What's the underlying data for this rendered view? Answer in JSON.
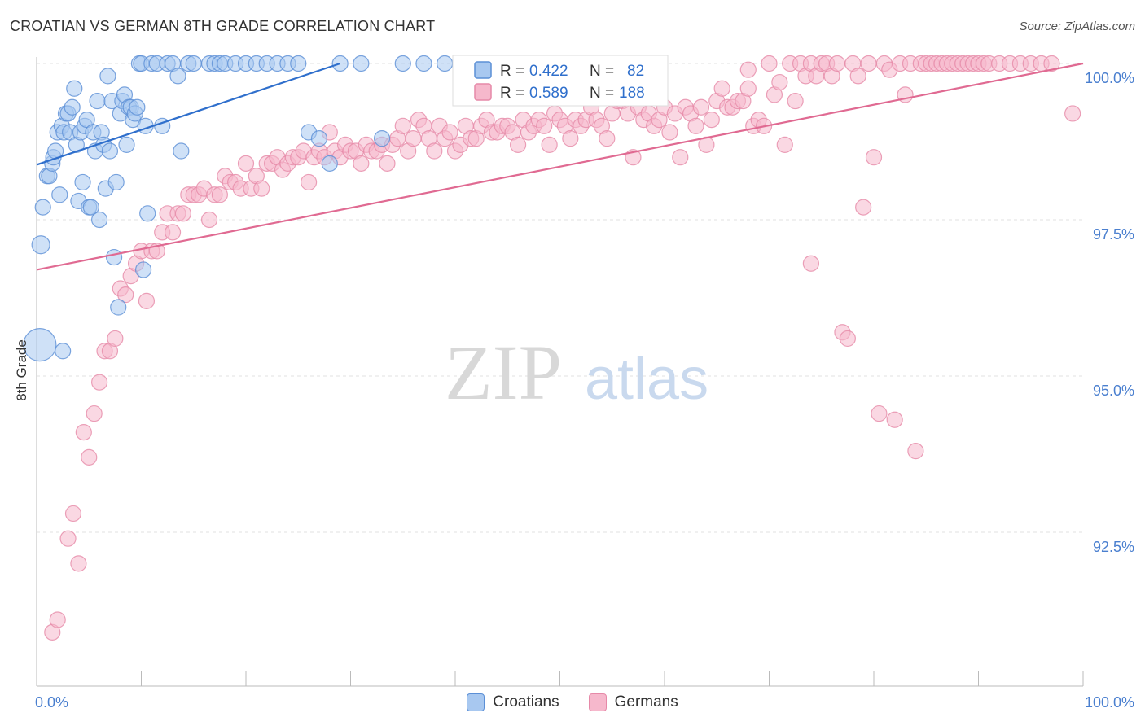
{
  "title": "CROATIAN VS GERMAN 8TH GRADE CORRELATION CHART",
  "source": "Source: ZipAtlas.com",
  "watermark": {
    "zip": "ZIP",
    "atlas": "atlas"
  },
  "chart_data": {
    "type": "scatter",
    "xlabel": "",
    "ylabel": "8th Grade",
    "xlim": [
      0,
      100
    ],
    "ylim": [
      90.2,
      100.6
    ],
    "x_tick_labels": [
      {
        "value": 0,
        "label": "0.0%"
      },
      {
        "value": 100,
        "label": "100.0%"
      }
    ],
    "y_ticks": [
      {
        "value": 92.5,
        "label": "92.5%"
      },
      {
        "value": 95.0,
        "label": "95.0%"
      },
      {
        "value": 97.5,
        "label": "97.5%"
      },
      {
        "value": 100.0,
        "label": "100.0%"
      }
    ],
    "legend_position": "top-center",
    "colors": {
      "croatians_fill": "#a8c8f0",
      "croatians_stroke": "#5b8fd6",
      "croatians_line": "#2f6fcc",
      "germans_fill": "#f6b8cc",
      "germans_stroke": "#e689a8",
      "germans_line": "#e06a92",
      "value_text": "#2f6fcc"
    },
    "series": [
      {
        "name": "Croatians",
        "r_label": "R =",
        "r_value": "0.422",
        "n_label": "N =",
        "n_value": "82",
        "trend": {
          "x0": 0,
          "y0": 98.38,
          "x1": 29,
          "y1": 100.0
        },
        "points": [
          [
            0.3,
            95.5
          ],
          [
            0.4,
            97.1
          ],
          [
            0.6,
            97.7
          ],
          [
            1.0,
            98.2
          ],
          [
            1.2,
            98.2
          ],
          [
            1.5,
            98.4
          ],
          [
            1.6,
            98.5
          ],
          [
            1.8,
            98.6
          ],
          [
            2.0,
            98.9
          ],
          [
            2.2,
            97.9
          ],
          [
            2.4,
            99.0
          ],
          [
            2.6,
            98.9
          ],
          [
            2.8,
            99.2
          ],
          [
            3.0,
            99.2
          ],
          [
            3.2,
            98.9
          ],
          [
            3.4,
            99.3
          ],
          [
            3.6,
            99.6
          ],
          [
            3.8,
            98.7
          ],
          [
            4.0,
            97.8
          ],
          [
            4.2,
            98.9
          ],
          [
            4.4,
            98.1
          ],
          [
            4.6,
            99.0
          ],
          [
            4.8,
            99.1
          ],
          [
            5.0,
            97.7
          ],
          [
            5.2,
            97.7
          ],
          [
            5.4,
            98.9
          ],
          [
            5.6,
            98.6
          ],
          [
            5.8,
            99.4
          ],
          [
            6.0,
            97.5
          ],
          [
            6.2,
            98.9
          ],
          [
            6.4,
            98.7
          ],
          [
            6.6,
            98.0
          ],
          [
            6.8,
            99.8
          ],
          [
            7.0,
            98.6
          ],
          [
            7.2,
            99.4
          ],
          [
            7.4,
            96.9
          ],
          [
            7.6,
            98.1
          ],
          [
            7.8,
            96.1
          ],
          [
            8.0,
            99.2
          ],
          [
            8.2,
            99.4
          ],
          [
            8.4,
            99.5
          ],
          [
            8.6,
            98.7
          ],
          [
            8.8,
            99.3
          ],
          [
            9.0,
            99.3
          ],
          [
            9.2,
            99.1
          ],
          [
            9.4,
            99.2
          ],
          [
            9.6,
            99.3
          ],
          [
            9.8,
            100.0
          ],
          [
            10.0,
            100.0
          ],
          [
            10.2,
            96.7
          ],
          [
            10.4,
            99.0
          ],
          [
            10.6,
            97.6
          ],
          [
            11.0,
            100.0
          ],
          [
            11.5,
            100.0
          ],
          [
            12.0,
            99.0
          ],
          [
            12.5,
            100.0
          ],
          [
            13.0,
            100.0
          ],
          [
            13.5,
            99.8
          ],
          [
            13.8,
            98.6
          ],
          [
            14.5,
            100.0
          ],
          [
            15.0,
            100.0
          ],
          [
            2.5,
            95.4
          ],
          [
            16.5,
            100.0
          ],
          [
            17.0,
            100.0
          ],
          [
            17.5,
            100.0
          ],
          [
            18.0,
            100.0
          ],
          [
            19.0,
            100.0
          ],
          [
            20.0,
            100.0
          ],
          [
            21.0,
            100.0
          ],
          [
            22.0,
            100.0
          ],
          [
            23.0,
            100.0
          ],
          [
            24.0,
            100.0
          ],
          [
            25.0,
            100.0
          ],
          [
            26.0,
            98.9
          ],
          [
            27.0,
            98.8
          ],
          [
            28.0,
            98.4
          ],
          [
            29.0,
            100.0
          ],
          [
            31.0,
            100.0
          ],
          [
            33.0,
            98.8
          ],
          [
            35.0,
            100.0
          ],
          [
            37.0,
            100.0
          ],
          [
            39.0,
            100.0
          ]
        ]
      },
      {
        "name": "Germans",
        "r_label": "R =",
        "r_value": "0.589",
        "n_label": "N =",
        "n_value": "188",
        "trend": {
          "x0": 0,
          "y0": 96.7,
          "x1": 100,
          "y1": 100.0
        },
        "points": [
          [
            1.5,
            90.9
          ],
          [
            2.0,
            91.1
          ],
          [
            3.0,
            92.4
          ],
          [
            3.5,
            92.8
          ],
          [
            4.0,
            92.0
          ],
          [
            4.5,
            94.1
          ],
          [
            5.0,
            93.7
          ],
          [
            5.5,
            94.4
          ],
          [
            6.0,
            94.9
          ],
          [
            6.5,
            95.4
          ],
          [
            7.0,
            95.4
          ],
          [
            7.5,
            95.6
          ],
          [
            8.0,
            96.4
          ],
          [
            8.5,
            96.3
          ],
          [
            9.0,
            96.6
          ],
          [
            9.5,
            96.8
          ],
          [
            10.0,
            97.0
          ],
          [
            10.5,
            96.2
          ],
          [
            11.0,
            97.0
          ],
          [
            11.5,
            97.0
          ],
          [
            12.0,
            97.3
          ],
          [
            12.5,
            97.6
          ],
          [
            13.0,
            97.3
          ],
          [
            13.5,
            97.6
          ],
          [
            14.0,
            97.6
          ],
          [
            14.5,
            97.9
          ],
          [
            15.0,
            97.9
          ],
          [
            15.5,
            97.9
          ],
          [
            16.0,
            98.0
          ],
          [
            16.5,
            97.5
          ],
          [
            17.0,
            97.9
          ],
          [
            17.5,
            97.9
          ],
          [
            18.0,
            98.2
          ],
          [
            18.5,
            98.1
          ],
          [
            19.0,
            98.1
          ],
          [
            19.5,
            98.0
          ],
          [
            20.0,
            98.4
          ],
          [
            20.5,
            98.0
          ],
          [
            21.0,
            98.2
          ],
          [
            21.5,
            98.0
          ],
          [
            22.0,
            98.4
          ],
          [
            22.5,
            98.4
          ],
          [
            23.0,
            98.5
          ],
          [
            23.5,
            98.3
          ],
          [
            24.0,
            98.4
          ],
          [
            24.5,
            98.5
          ],
          [
            25.0,
            98.5
          ],
          [
            25.5,
            98.6
          ],
          [
            26.0,
            98.1
          ],
          [
            26.5,
            98.5
          ],
          [
            27.0,
            98.6
          ],
          [
            27.5,
            98.5
          ],
          [
            28.0,
            98.9
          ],
          [
            28.5,
            98.6
          ],
          [
            29.0,
            98.5
          ],
          [
            29.5,
            98.7
          ],
          [
            30.0,
            98.6
          ],
          [
            30.5,
            98.6
          ],
          [
            31.0,
            98.4
          ],
          [
            31.5,
            98.7
          ],
          [
            32.0,
            98.6
          ],
          [
            32.5,
            98.6
          ],
          [
            33.0,
            98.7
          ],
          [
            33.5,
            98.4
          ],
          [
            34.0,
            98.7
          ],
          [
            34.5,
            98.8
          ],
          [
            35.0,
            99.0
          ],
          [
            35.5,
            98.6
          ],
          [
            36.0,
            98.8
          ],
          [
            36.5,
            99.1
          ],
          [
            37.0,
            99.0
          ],
          [
            37.5,
            98.8
          ],
          [
            38.0,
            98.6
          ],
          [
            38.5,
            99.0
          ],
          [
            39.0,
            98.8
          ],
          [
            39.5,
            98.9
          ],
          [
            40.0,
            98.6
          ],
          [
            40.5,
            98.7
          ],
          [
            41.0,
            99.0
          ],
          [
            41.5,
            98.8
          ],
          [
            42.0,
            98.8
          ],
          [
            42.5,
            99.0
          ],
          [
            43.0,
            99.1
          ],
          [
            43.5,
            98.9
          ],
          [
            44.0,
            98.9
          ],
          [
            44.5,
            99.0
          ],
          [
            45.0,
            99.0
          ],
          [
            45.5,
            98.9
          ],
          [
            46.0,
            98.7
          ],
          [
            46.5,
            99.1
          ],
          [
            47.0,
            98.9
          ],
          [
            47.5,
            99.0
          ],
          [
            48.0,
            99.1
          ],
          [
            48.5,
            99.0
          ],
          [
            49.0,
            98.7
          ],
          [
            49.5,
            99.2
          ],
          [
            50.0,
            99.1
          ],
          [
            50.5,
            99.0
          ],
          [
            51.0,
            98.8
          ],
          [
            51.5,
            99.1
          ],
          [
            52.0,
            99.0
          ],
          [
            52.5,
            99.1
          ],
          [
            53.0,
            99.3
          ],
          [
            53.5,
            99.1
          ],
          [
            54.0,
            99.0
          ],
          [
            54.5,
            98.8
          ],
          [
            55.0,
            99.2
          ],
          [
            55.5,
            99.4
          ],
          [
            56.0,
            99.4
          ],
          [
            56.5,
            99.2
          ],
          [
            57.0,
            98.5
          ],
          [
            57.5,
            99.3
          ],
          [
            58.0,
            99.1
          ],
          [
            58.5,
            99.2
          ],
          [
            59.0,
            99.0
          ],
          [
            59.5,
            99.1
          ],
          [
            60.0,
            99.3
          ],
          [
            60.5,
            98.9
          ],
          [
            61.0,
            99.2
          ],
          [
            61.5,
            98.5
          ],
          [
            62.0,
            99.3
          ],
          [
            62.5,
            99.2
          ],
          [
            63.0,
            99.0
          ],
          [
            63.5,
            99.3
          ],
          [
            64.0,
            98.7
          ],
          [
            64.5,
            99.1
          ],
          [
            65.0,
            99.4
          ],
          [
            65.5,
            99.6
          ],
          [
            66.0,
            99.3
          ],
          [
            66.5,
            99.3
          ],
          [
            67.0,
            99.4
          ],
          [
            67.5,
            99.4
          ],
          [
            68.0,
            99.6
          ],
          [
            68.5,
            99.0
          ],
          [
            69.0,
            99.1
          ],
          [
            69.5,
            99.0
          ],
          [
            70.0,
            100.0
          ],
          [
            70.5,
            99.5
          ],
          [
            71.0,
            99.7
          ],
          [
            71.5,
            98.7
          ],
          [
            72.0,
            100.0
          ],
          [
            72.5,
            99.4
          ],
          [
            73.0,
            100.0
          ],
          [
            73.5,
            99.8
          ],
          [
            74.0,
            100.0
          ],
          [
            74.5,
            99.8
          ],
          [
            75.0,
            100.0
          ],
          [
            75.5,
            100.0
          ],
          [
            76.0,
            99.8
          ],
          [
            76.5,
            100.0
          ],
          [
            77.0,
            95.7
          ],
          [
            77.5,
            95.6
          ],
          [
            78.0,
            100.0
          ],
          [
            78.5,
            99.8
          ],
          [
            79.0,
            97.7
          ],
          [
            79.5,
            100.0
          ],
          [
            80.0,
            98.5
          ],
          [
            80.5,
            94.4
          ],
          [
            81.0,
            100.0
          ],
          [
            81.5,
            99.9
          ],
          [
            82.0,
            94.3
          ],
          [
            82.5,
            100.0
          ],
          [
            83.0,
            99.5
          ],
          [
            83.5,
            100.0
          ],
          [
            84.0,
            93.8
          ],
          [
            84.5,
            100.0
          ],
          [
            85.0,
            100.0
          ],
          [
            85.5,
            100.0
          ],
          [
            86.0,
            100.0
          ],
          [
            86.5,
            100.0
          ],
          [
            87.0,
            100.0
          ],
          [
            87.5,
            100.0
          ],
          [
            88.0,
            100.0
          ],
          [
            88.5,
            100.0
          ],
          [
            89.0,
            100.0
          ],
          [
            89.5,
            100.0
          ],
          [
            90.0,
            100.0
          ],
          [
            90.5,
            100.0
          ],
          [
            91.0,
            100.0
          ],
          [
            92.0,
            100.0
          ],
          [
            93.0,
            100.0
          ],
          [
            94.0,
            100.0
          ],
          [
            95.0,
            100.0
          ],
          [
            96.0,
            100.0
          ],
          [
            97.0,
            100.0
          ],
          [
            99.0,
            99.2
          ],
          [
            74.0,
            96.8
          ],
          [
            68.0,
            99.9
          ]
        ]
      }
    ]
  }
}
